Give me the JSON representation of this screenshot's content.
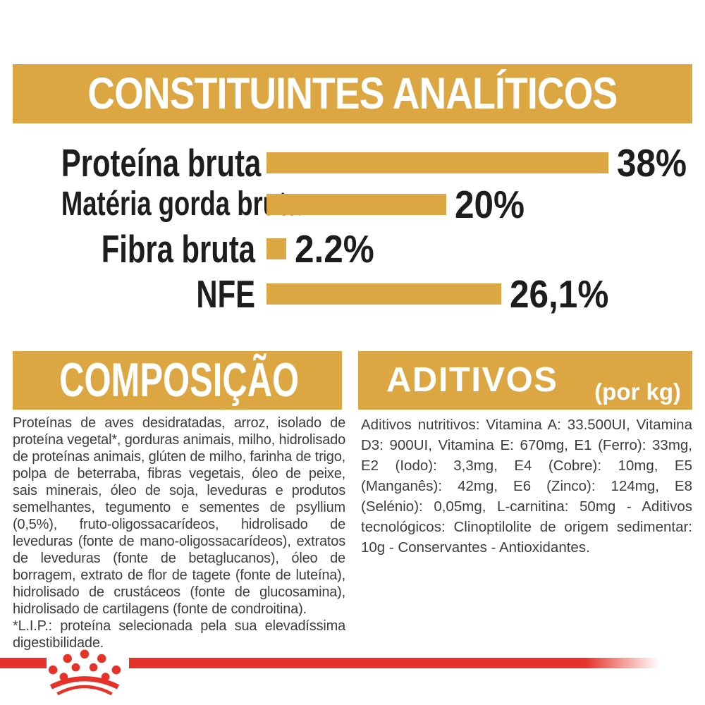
{
  "page": {
    "background": "#ffffff",
    "accent_gold": "#DCA642",
    "brand_red": "#E6332A",
    "heading_text_color": "#ffffff",
    "label_text_color": "#1D1D1B",
    "body_text_color": "#3D3D3C"
  },
  "analytical": {
    "title": "CONSTITUINTES ANALÍTICOS"
  },
  "chart_data": {
    "type": "bar",
    "orientation": "horizontal",
    "title": "CONSTITUINTES ANALÍTICOS",
    "categories": [
      "Proteína bruta",
      "Matéria gorda bruta",
      "Fibra bruta",
      "NFE"
    ],
    "values": [
      38,
      20,
      2.2,
      26.1
    ],
    "value_labels": [
      "38%",
      "20%",
      "2.2%",
      "26,1%"
    ],
    "unit": "%",
    "xlim": [
      0,
      40
    ],
    "bar_color": "#DCA642",
    "grid": false,
    "legend": false
  },
  "composition": {
    "title": "COMPOSIÇÃO",
    "body": "Proteínas de aves desidratadas, arroz, isolado de proteína vegetal*, gorduras animais, milho, hidrolisado de proteínas animais, glúten de milho, farinha de trigo, polpa de beterraba, fibras vegetais, óleo de peixe, sais minerais, óleo de soja, leveduras e produtos semelhantes, tegumento e sementes de psyllium (0,5%), fruto-oligossacarídeos, hidrolisado de leveduras (fonte de mano-oligossacarídeos), extratos de leveduras (fonte de betaglucanos), óleo de borragem, extrato de flor de tagete (fonte de luteína), hidrolisado de crustáceos (fonte de glucosamina), hidrolisado de cartilagens (fonte de condroitina).",
    "note": "*L.I.P.: proteína selecionada pela sua elevadíssima digestibilidade."
  },
  "additives": {
    "title": "ADITIVOS",
    "subtitle": "(por kg)",
    "body": "Aditivos nutritivos: Vitamina A: 33.500UI, Vitamina D3: 900UI, Vitamina E: 670mg, E1 (Ferro): 33mg, E2 (Iodo): 3,3mg, E4 (Cobre): 10mg, E5 (Manganês): 42mg, E6 (Zinco): 124mg, E8 (Selénio): 0,05mg, L-carnitina: 50mg - Aditivos tecnológicos: Clinoptilolite de origem sedimentar: 10g - Conservantes - Antioxidantes."
  },
  "footer": {
    "logo": "royal-canin-crown"
  }
}
